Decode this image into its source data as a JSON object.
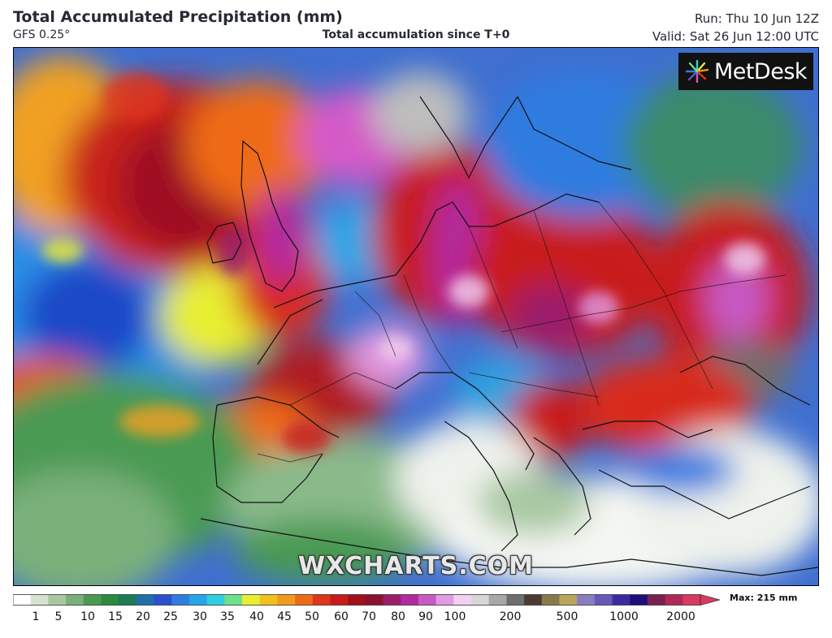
{
  "header": {
    "title": "Total Accumulated Precipitation (mm)",
    "model": "GFS 0.25°",
    "subtitle": "Total accumulation since T+0",
    "run": "Run: Thu 10 Jun 12Z",
    "valid": "Valid: Sat 26 Jun 12:00 UTC"
  },
  "map": {
    "logo_text": "MetDesk",
    "watermark": "WXCHARTS.COM",
    "logo_icon": "burst-icon"
  },
  "legend": {
    "max_label": "Max: 215 mm",
    "ticks": [
      "1",
      "5",
      "10",
      "15",
      "20",
      "25",
      "30",
      "35",
      "40",
      "45",
      "50",
      "60",
      "70",
      "80",
      "90",
      "100",
      "200",
      "500",
      "1000",
      "2000"
    ],
    "colors": [
      "#ffffff",
      "#d7e2d3",
      "#a9c8a2",
      "#7ab07a",
      "#4a9a52",
      "#2b8a3e",
      "#1c7a55",
      "#1f6fa8",
      "#2a4fd1",
      "#2f7ce0",
      "#25a6e8",
      "#2fd0e0",
      "#6fe08a",
      "#e8ee32",
      "#f4c020",
      "#f29a1c",
      "#ee6a18",
      "#e0341c",
      "#c81a1a",
      "#a40f1a",
      "#8a1130",
      "#9a1e6a",
      "#b12aa0",
      "#c75ac4",
      "#e29ae0",
      "#f2d0f0",
      "#d6d6d6",
      "#a8a8a8",
      "#6e6e6e",
      "#4a3c30",
      "#8a7a4a",
      "#b9a45a",
      "#8a7cc0",
      "#6858b8",
      "#3a2aa0",
      "#1c1078",
      "#7a2050",
      "#b0285a",
      "#d83a60"
    ]
  }
}
